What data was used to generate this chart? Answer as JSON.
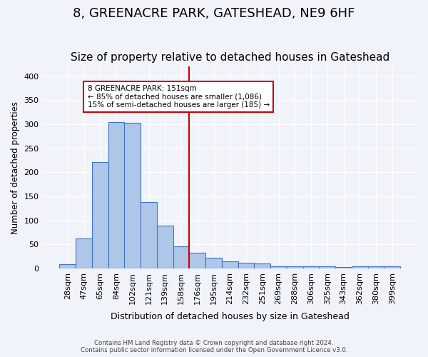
{
  "title": "8, GREENACRE PARK, GATESHEAD, NE9 6HF",
  "subtitle": "Size of property relative to detached houses in Gateshead",
  "xlabel": "Distribution of detached houses by size in Gateshead",
  "ylabel": "Number of detached properties",
  "categories": [
    "28sqm",
    "47sqm",
    "65sqm",
    "84sqm",
    "102sqm",
    "121sqm",
    "139sqm",
    "158sqm",
    "176sqm",
    "195sqm",
    "214sqm",
    "232sqm",
    "251sqm",
    "269sqm",
    "288sqm",
    "306sqm",
    "325sqm",
    "343sqm",
    "362sqm",
    "380sqm",
    "399sqm"
  ],
  "values": [
    9,
    63,
    221,
    305,
    303,
    138,
    89,
    46,
    33,
    22,
    15,
    12,
    11,
    4,
    5,
    4,
    4,
    3,
    5,
    4,
    4
  ],
  "bar_color": "#aec6e8",
  "bar_edge_color": "#4472c4",
  "vline_x": 7.5,
  "vline_color": "#cc0000",
  "annotation_text": "8 GREENACRE PARK: 151sqm\n← 85% of detached houses are smaller (1,086)\n15% of semi-detached houses are larger (185) →",
  "annotation_box_color": "#ffffff",
  "annotation_box_edge": "#cc0000",
  "ylim": [
    0,
    420
  ],
  "footnote1": "Contains HM Land Registry data © Crown copyright and database right 2024.",
  "footnote2": "Contains public sector information licensed under the Open Government Licence v3.0.",
  "background_color": "#f0f4fa",
  "title_fontsize": 13,
  "subtitle_fontsize": 11
}
